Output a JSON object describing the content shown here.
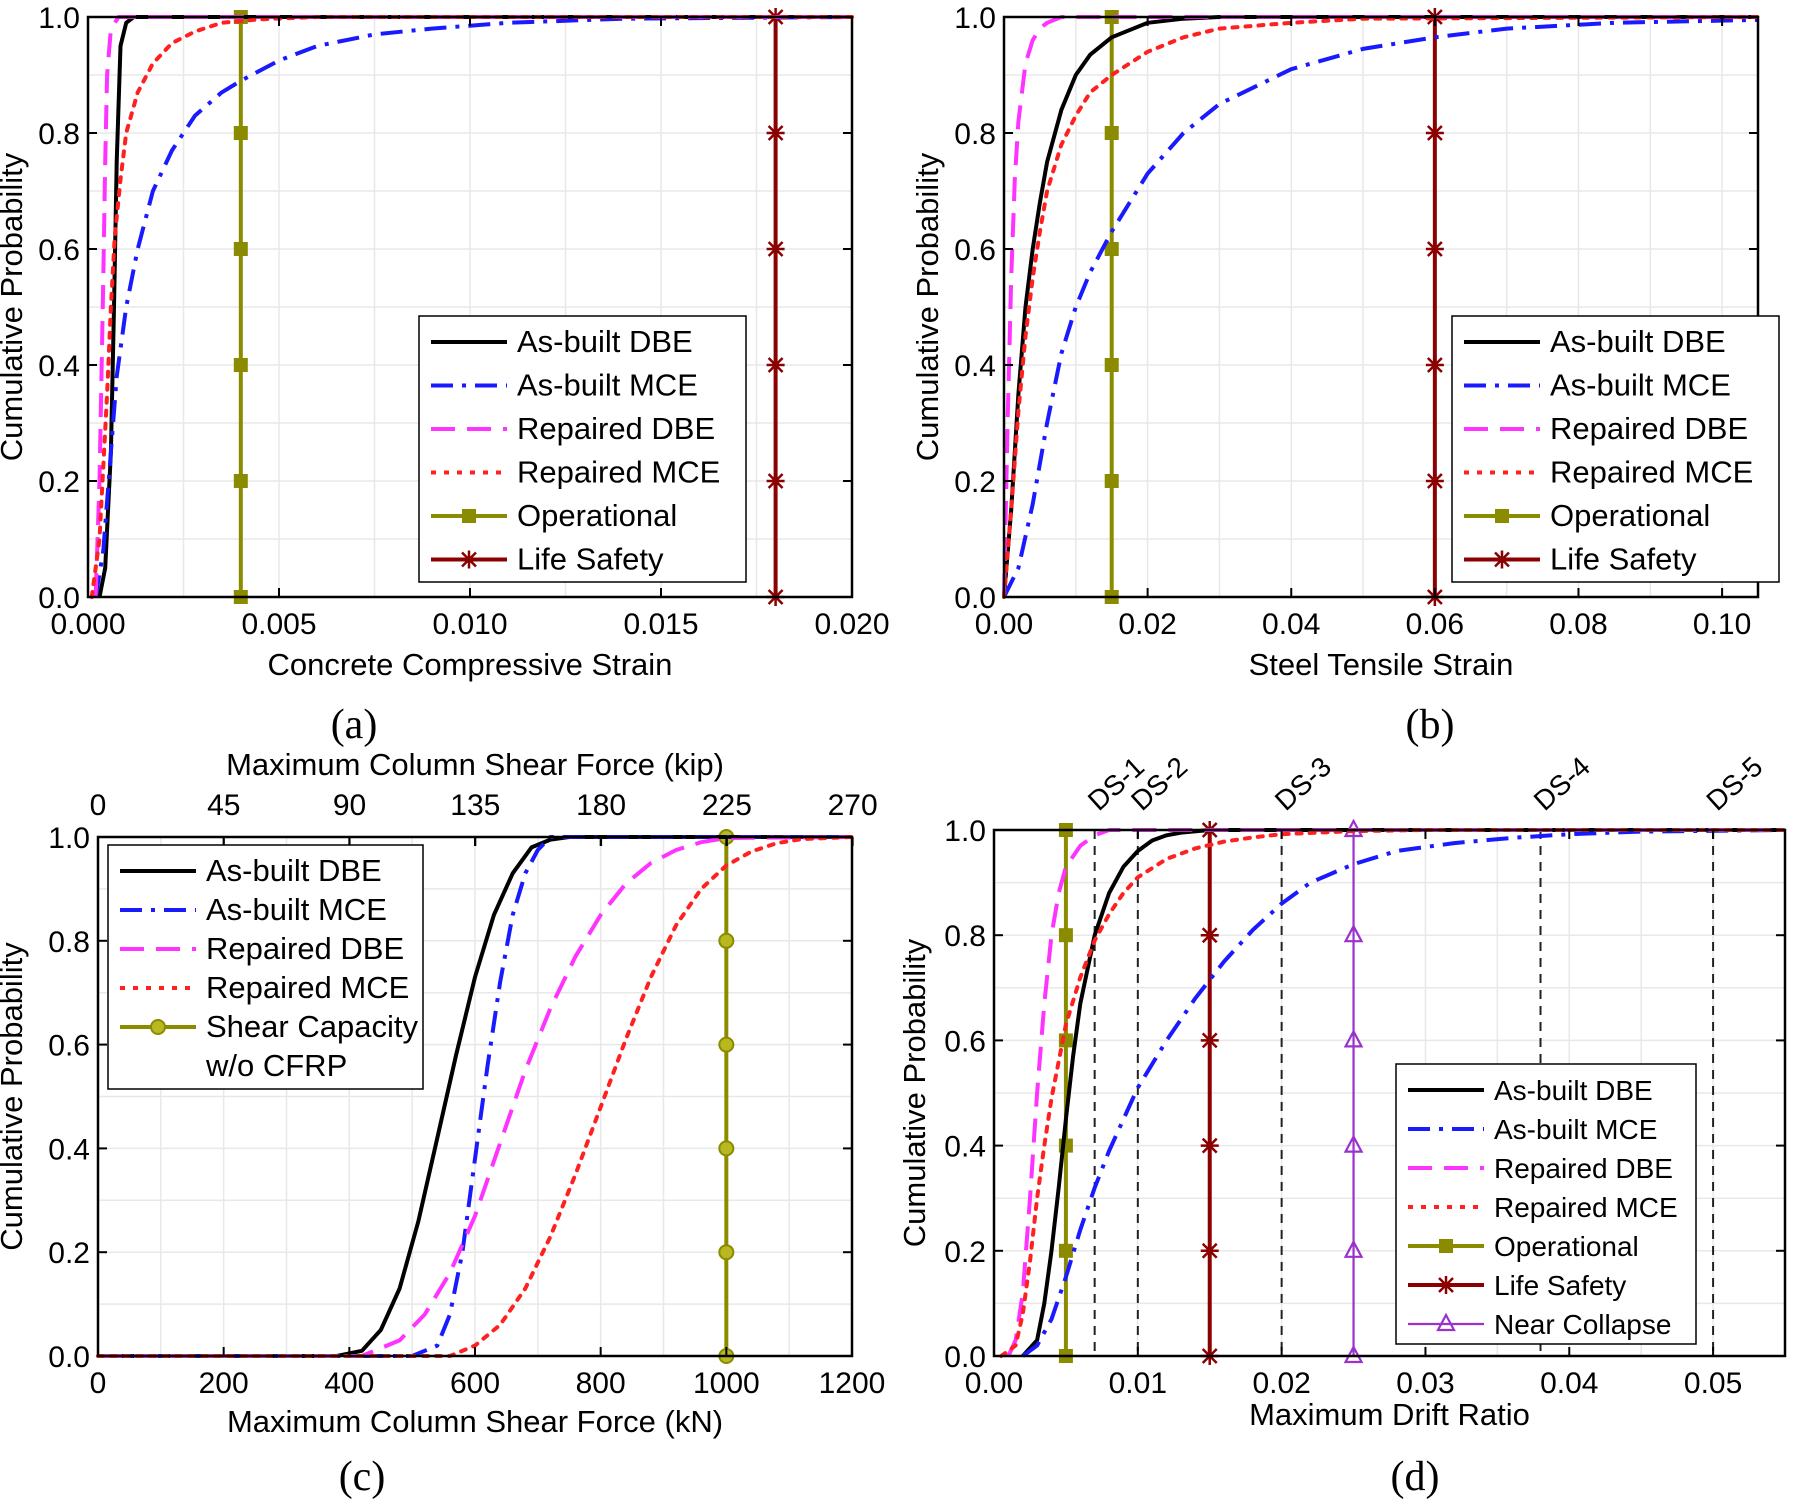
{
  "figure": {
    "panel_labels": [
      "(a)",
      "(b)",
      "(c)",
      "(d)"
    ]
  },
  "chart_data": [
    {
      "id": "a",
      "type": "line",
      "panel_label": "(a)",
      "xlabel": "Concrete Compressive Strain",
      "ylabel": "Cumulative Probability",
      "xlim": [
        0,
        0.02
      ],
      "ylim": [
        0,
        1
      ],
      "xticks": [
        0,
        0.005,
        0.01,
        0.015,
        0.02
      ],
      "xtick_labels": [
        "0.000",
        "0.005",
        "0.010",
        "0.015",
        "0.020"
      ],
      "yticks": [
        0,
        0.2,
        0.4,
        0.6,
        0.8,
        1.0
      ],
      "ytick_labels": [
        "0.0",
        "0.2",
        "0.4",
        "0.6",
        "0.8",
        "1.0"
      ],
      "grid": true,
      "legend_position": "bottom-right",
      "series": [
        {
          "name": "As-built DBE",
          "color": "#000000",
          "style": "solid",
          "x": [
            0.0003,
            0.00045,
            0.0006,
            0.00068,
            0.00075,
            0.00085,
            0.001,
            0.0012,
            0.02
          ],
          "y": [
            0,
            0.05,
            0.25,
            0.5,
            0.75,
            0.95,
            0.99,
            1.0,
            1.0
          ]
        },
        {
          "name": "As-built MCE",
          "color": "#1a1aff",
          "style": "dashdot",
          "x": [
            0.0002,
            0.0004,
            0.0006,
            0.00075,
            0.001,
            0.0013,
            0.0017,
            0.0022,
            0.0028,
            0.0035,
            0.004,
            0.005,
            0.006,
            0.0075,
            0.009,
            0.011,
            0.014,
            0.02
          ],
          "y": [
            0,
            0.08,
            0.25,
            0.38,
            0.5,
            0.6,
            0.7,
            0.77,
            0.83,
            0.87,
            0.89,
            0.925,
            0.95,
            0.97,
            0.98,
            0.99,
            0.997,
            1.0
          ]
        },
        {
          "name": "Repaired DBE",
          "color": "#ff33ff",
          "style": "dash",
          "x": [
            0.0002,
            0.0003,
            0.0004,
            0.00045,
            0.0005,
            0.0006,
            0.0008,
            0.001,
            0.02
          ],
          "y": [
            0,
            0.2,
            0.55,
            0.75,
            0.9,
            0.98,
            1.0,
            1.0,
            1.0
          ]
        },
        {
          "name": "Repaired MCE",
          "color": "#ff2020",
          "style": "dot",
          "x": [
            0.0001,
            0.0003,
            0.0005,
            0.0006,
            0.0007,
            0.00085,
            0.001,
            0.0013,
            0.0017,
            0.0022,
            0.0028,
            0.0035,
            0.0045,
            0.006,
            0.02
          ],
          "y": [
            0,
            0.1,
            0.35,
            0.5,
            0.62,
            0.72,
            0.8,
            0.87,
            0.92,
            0.955,
            0.975,
            0.99,
            0.996,
            1.0,
            1.0
          ]
        }
      ],
      "limit_lines": [
        {
          "name": "Operational",
          "color": "#8b8b00",
          "marker": "square",
          "x": 0.004
        },
        {
          "name": "Life Safety",
          "color": "#8b0000",
          "marker": "star",
          "x": 0.018
        }
      ]
    },
    {
      "id": "b",
      "type": "line",
      "panel_label": "(b)",
      "xlabel": "Steel Tensile Strain",
      "ylabel": "Cumulative Probability",
      "xlim": [
        0,
        0.105
      ],
      "ylim": [
        0,
        1
      ],
      "xticks": [
        0,
        0.02,
        0.04,
        0.06,
        0.08,
        0.1
      ],
      "xtick_labels": [
        "0.00",
        "0.02",
        "0.04",
        "0.06",
        "0.08",
        "0.10"
      ],
      "yticks": [
        0,
        0.2,
        0.4,
        0.6,
        0.8,
        1.0
      ],
      "ytick_labels": [
        "0.0",
        "0.2",
        "0.4",
        "0.6",
        "0.8",
        "1.0"
      ],
      "grid": true,
      "legend_position": "bottom-right",
      "series": [
        {
          "name": "As-built DBE",
          "color": "#000000",
          "style": "solid",
          "x": [
            0,
            0.001,
            0.002,
            0.003,
            0.004,
            0.005,
            0.006,
            0.008,
            0.01,
            0.012,
            0.015,
            0.02,
            0.025,
            0.03,
            0.105
          ],
          "y": [
            0,
            0.15,
            0.35,
            0.5,
            0.6,
            0.68,
            0.75,
            0.84,
            0.9,
            0.935,
            0.965,
            0.99,
            0.997,
            1.0,
            1.0
          ]
        },
        {
          "name": "As-built MCE",
          "color": "#1a1aff",
          "style": "dashdot",
          "x": [
            0,
            0.002,
            0.004,
            0.006,
            0.008,
            0.01,
            0.012,
            0.015,
            0.02,
            0.025,
            0.03,
            0.04,
            0.05,
            0.06,
            0.07,
            0.085,
            0.105
          ],
          "y": [
            0,
            0.05,
            0.16,
            0.3,
            0.42,
            0.5,
            0.56,
            0.63,
            0.73,
            0.8,
            0.85,
            0.91,
            0.945,
            0.965,
            0.98,
            0.99,
            0.995
          ]
        },
        {
          "name": "Repaired DBE",
          "color": "#ff33ff",
          "style": "dash",
          "x": [
            0,
            0.0005,
            0.001,
            0.0015,
            0.002,
            0.003,
            0.004,
            0.005,
            0.006,
            0.008,
            0.105
          ],
          "y": [
            0,
            0.3,
            0.55,
            0.72,
            0.82,
            0.92,
            0.96,
            0.98,
            0.99,
            1.0,
            1.0
          ]
        },
        {
          "name": "Repaired MCE",
          "color": "#ff2020",
          "style": "dot",
          "x": [
            0,
            0.001,
            0.002,
            0.003,
            0.004,
            0.005,
            0.006,
            0.008,
            0.01,
            0.012,
            0.015,
            0.02,
            0.025,
            0.03,
            0.04,
            0.05,
            0.105
          ],
          "y": [
            0,
            0.15,
            0.32,
            0.45,
            0.55,
            0.63,
            0.7,
            0.78,
            0.83,
            0.87,
            0.9,
            0.94,
            0.965,
            0.98,
            0.99,
            0.997,
            1.0
          ]
        }
      ],
      "limit_lines": [
        {
          "name": "Operational",
          "color": "#8b8b00",
          "marker": "square",
          "x": 0.015
        },
        {
          "name": "Life Safety",
          "color": "#8b0000",
          "marker": "star",
          "x": 0.06
        }
      ]
    },
    {
      "id": "c",
      "type": "line",
      "panel_label": "(c)",
      "xlabel": "Maximum Column Shear Force (kN)",
      "x2label": "Maximum Column Shear Force (kip)",
      "ylabel": "Cumulative Probability",
      "xlim": [
        0,
        1200
      ],
      "ylim": [
        0,
        1
      ],
      "xticks": [
        0,
        200,
        400,
        600,
        800,
        1000,
        1200
      ],
      "xtick_labels": [
        "0",
        "200",
        "400",
        "600",
        "800",
        "1000",
        "1200"
      ],
      "x2ticks_kip": [
        0,
        45,
        90,
        135,
        180,
        225,
        270
      ],
      "x2tick_labels": [
        "0",
        "45",
        "90",
        "135",
        "180",
        "225",
        "270"
      ],
      "yticks": [
        0,
        0.2,
        0.4,
        0.6,
        0.8,
        1.0
      ],
      "ytick_labels": [
        "0.0",
        "0.2",
        "0.4",
        "0.6",
        "0.8",
        "1.0"
      ],
      "grid": true,
      "legend_position": "top-left",
      "series": [
        {
          "name": "As-built DBE",
          "color": "#000000",
          "style": "solid",
          "x": [
            0,
            380,
            420,
            450,
            480,
            510,
            540,
            570,
            600,
            630,
            660,
            690,
            720,
            750,
            1200
          ],
          "y": [
            0,
            0,
            0.01,
            0.05,
            0.13,
            0.26,
            0.42,
            0.58,
            0.73,
            0.85,
            0.93,
            0.98,
            0.995,
            1.0,
            1.0
          ]
        },
        {
          "name": "As-built MCE",
          "color": "#1a1aff",
          "style": "dashdot",
          "x": [
            0,
            500,
            540,
            560,
            580,
            600,
            620,
            640,
            660,
            680,
            700,
            720,
            1200
          ],
          "y": [
            0,
            0,
            0.02,
            0.08,
            0.2,
            0.38,
            0.56,
            0.72,
            0.85,
            0.93,
            0.975,
            1.0,
            1.0
          ]
        },
        {
          "name": "Repaired DBE",
          "color": "#ff33ff",
          "style": "dash",
          "x": [
            0,
            420,
            480,
            520,
            560,
            600,
            640,
            680,
            720,
            760,
            800,
            840,
            880,
            920,
            960,
            1000,
            1200
          ],
          "y": [
            0,
            0,
            0.03,
            0.08,
            0.16,
            0.27,
            0.41,
            0.55,
            0.67,
            0.77,
            0.85,
            0.91,
            0.95,
            0.975,
            0.99,
            0.998,
            1.0
          ]
        },
        {
          "name": "Repaired MCE",
          "color": "#ff2020",
          "style": "dot",
          "x": [
            0,
            560,
            600,
            640,
            680,
            720,
            760,
            800,
            840,
            880,
            920,
            960,
            1000,
            1040,
            1080,
            1120,
            1200
          ],
          "y": [
            0,
            0,
            0.02,
            0.06,
            0.13,
            0.23,
            0.35,
            0.48,
            0.61,
            0.73,
            0.83,
            0.9,
            0.945,
            0.972,
            0.988,
            0.996,
            1.0
          ]
        }
      ],
      "limit_lines": [
        {
          "name": "Shear Capacity w/o CFRP",
          "legend_lines": [
            "Shear Capacity",
            "w/o CFRP"
          ],
          "color": "#8b8b00",
          "marker": "circle",
          "x": 1000
        }
      ]
    },
    {
      "id": "d",
      "type": "line",
      "panel_label": "(d)",
      "xlabel": "Maximum Drift Ratio",
      "ylabel": "Cumulative Probability",
      "xlim": [
        0,
        0.055
      ],
      "ylim": [
        0,
        1
      ],
      "xticks": [
        0,
        0.01,
        0.02,
        0.03,
        0.04,
        0.05
      ],
      "xtick_labels": [
        "0.00",
        "0.01",
        "0.02",
        "0.03",
        "0.04",
        "0.05"
      ],
      "yticks": [
        0,
        0.2,
        0.4,
        0.6,
        0.8,
        1.0
      ],
      "ytick_labels": [
        "0.0",
        "0.2",
        "0.4",
        "0.6",
        "0.8",
        "1.0"
      ],
      "grid": true,
      "legend_position": "bottom-right",
      "damage_states": [
        {
          "label": "DS-1",
          "x": 0.007
        },
        {
          "label": "DS-2",
          "x": 0.01
        },
        {
          "label": "DS-3",
          "x": 0.02
        },
        {
          "label": "DS-4",
          "x": 0.038
        },
        {
          "label": "DS-5",
          "x": 0.05
        }
      ],
      "series": [
        {
          "name": "As-built DBE",
          "color": "#000000",
          "style": "solid",
          "x": [
            0.002,
            0.003,
            0.0035,
            0.004,
            0.0045,
            0.005,
            0.0055,
            0.006,
            0.007,
            0.008,
            0.009,
            0.01,
            0.011,
            0.012,
            0.013,
            0.015,
            0.055
          ],
          "y": [
            0,
            0.03,
            0.1,
            0.2,
            0.32,
            0.45,
            0.57,
            0.67,
            0.8,
            0.88,
            0.93,
            0.96,
            0.98,
            0.99,
            0.995,
            1.0,
            1.0
          ]
        },
        {
          "name": "As-built MCE",
          "color": "#1a1aff",
          "style": "dashdot",
          "x": [
            0.002,
            0.003,
            0.004,
            0.005,
            0.006,
            0.007,
            0.008,
            0.009,
            0.01,
            0.012,
            0.014,
            0.016,
            0.018,
            0.02,
            0.022,
            0.025,
            0.028,
            0.032,
            0.036,
            0.04,
            0.045,
            0.055
          ],
          "y": [
            0,
            0.02,
            0.07,
            0.15,
            0.24,
            0.32,
            0.39,
            0.45,
            0.51,
            0.6,
            0.68,
            0.75,
            0.81,
            0.86,
            0.9,
            0.935,
            0.96,
            0.975,
            0.985,
            0.992,
            0.997,
            1.0
          ]
        },
        {
          "name": "Repaired DBE",
          "color": "#ff33ff",
          "style": "dash",
          "x": [
            0.001,
            0.0015,
            0.002,
            0.0025,
            0.003,
            0.0035,
            0.004,
            0.0045,
            0.005,
            0.006,
            0.007,
            0.008,
            0.055
          ],
          "y": [
            0,
            0.03,
            0.12,
            0.3,
            0.5,
            0.67,
            0.8,
            0.88,
            0.93,
            0.97,
            0.99,
            1.0,
            1.0
          ]
        },
        {
          "name": "Repaired MCE",
          "color": "#ff2020",
          "style": "dot",
          "x": [
            0.0005,
            0.0015,
            0.002,
            0.0025,
            0.003,
            0.0035,
            0.004,
            0.005,
            0.006,
            0.007,
            0.008,
            0.009,
            0.01,
            0.012,
            0.014,
            0.016,
            0.018,
            0.02,
            0.025,
            0.03,
            0.055
          ],
          "y": [
            0,
            0.02,
            0.08,
            0.18,
            0.3,
            0.4,
            0.49,
            0.63,
            0.72,
            0.79,
            0.84,
            0.88,
            0.91,
            0.945,
            0.965,
            0.978,
            0.986,
            0.992,
            0.998,
            1.0,
            1.0
          ]
        }
      ],
      "limit_lines": [
        {
          "name": "Operational",
          "color": "#8b8b00",
          "marker": "square",
          "x": 0.005
        },
        {
          "name": "Life Safety",
          "color": "#8b0000",
          "marker": "star",
          "x": 0.015
        },
        {
          "name": "Near Collapse",
          "color": "#9933cc",
          "marker": "triangle",
          "x": 0.025
        }
      ]
    }
  ]
}
